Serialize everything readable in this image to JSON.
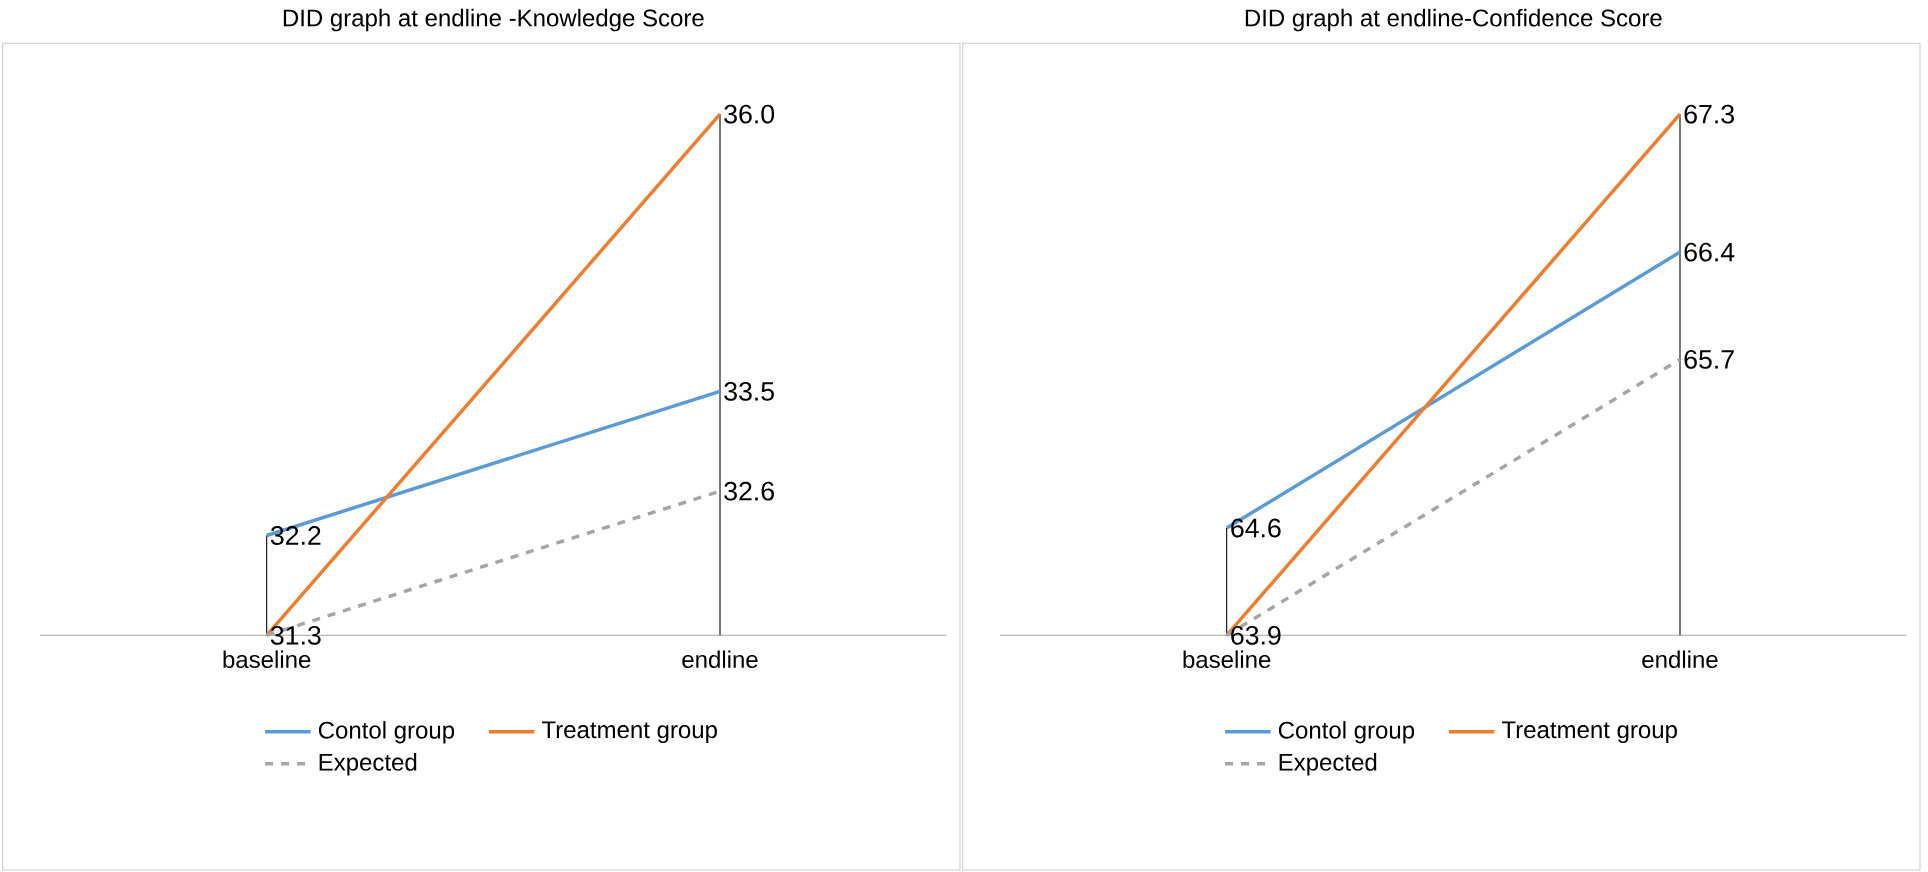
{
  "chart_data": [
    {
      "type": "line",
      "title": "DID graph at endline -Knowledge Score",
      "categories": [
        "baseline",
        "endline"
      ],
      "series": [
        {
          "name": "Contol group",
          "color": "#5b9bd5",
          "values": [
            32.2,
            33.5
          ],
          "value_labels": [
            "32.2",
            "33.5"
          ]
        },
        {
          "name": "Treatment group",
          "color": "#ed7d31",
          "values": [
            31.3,
            36.0
          ],
          "value_labels": [
            "31.3",
            "36.0"
          ]
        },
        {
          "name": "Expected",
          "color": "#a5a5a5",
          "values": [
            31.3,
            32.6
          ],
          "value_labels": [
            null,
            "32.6"
          ],
          "line_style": "dashed"
        }
      ],
      "tick_labels": "x",
      "legend": "bottom",
      "marker": "none",
      "line_style": "solid"
    },
    {
      "type": "line",
      "title": "DID graph at endline-Confidence Score",
      "categories": [
        "baseline",
        "endline"
      ],
      "series": [
        {
          "name": "Contol group",
          "color": "#5b9bd5",
          "values": [
            64.6,
            66.4
          ],
          "value_labels": [
            "64.6",
            "66.4"
          ]
        },
        {
          "name": "Treatment group",
          "color": "#ed7d31",
          "values": [
            63.9,
            67.3
          ],
          "value_labels": [
            "63.9",
            "67.3"
          ]
        },
        {
          "name": "Expected",
          "color": "#a5a5a5",
          "values": [
            63.9,
            65.7
          ],
          "value_labels": [
            null,
            "65.7"
          ],
          "line_style": "dashed"
        }
      ],
      "tick_labels": "x",
      "legend": "bottom",
      "marker": "none",
      "line_style": "solid"
    }
  ]
}
